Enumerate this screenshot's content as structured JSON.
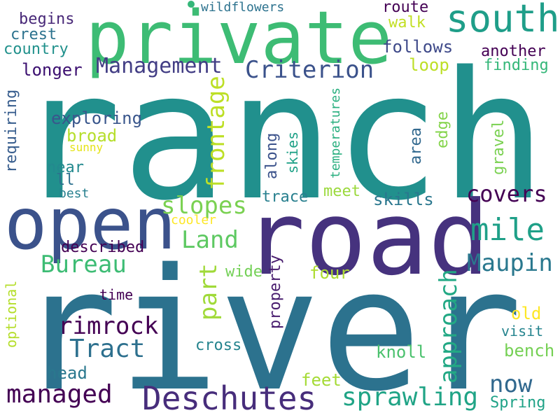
{
  "words": [
    {
      "text": "ranch",
      "color": "#21908d"
    },
    {
      "text": "river",
      "color": "#2c728e"
    },
    {
      "text": "road",
      "color": "#46327e"
    },
    {
      "text": "private",
      "color": "#3dbc74"
    },
    {
      "text": "open",
      "color": "#3b528b"
    },
    {
      "text": "south",
      "color": "#1f9e89"
    },
    {
      "text": "Deschutes",
      "color": "#472d7b"
    },
    {
      "text": "Management",
      "color": "#433e85"
    },
    {
      "text": "Criterion",
      "color": "#3b528b"
    },
    {
      "text": "mile",
      "color": "#1fa088"
    },
    {
      "text": "Bureau",
      "color": "#3dbc74"
    },
    {
      "text": "Maupin",
      "color": "#2a788e"
    },
    {
      "text": "Tract",
      "color": "#2d708e"
    },
    {
      "text": "sprawling",
      "color": "#20a486"
    },
    {
      "text": "rimrock",
      "color": "#440154"
    },
    {
      "text": "managed",
      "color": "#440154"
    },
    {
      "text": "now",
      "color": "#31688e"
    },
    {
      "text": "covers",
      "color": "#440154"
    },
    {
      "text": "Land",
      "color": "#5ec962"
    },
    {
      "text": "slopes",
      "color": "#7ad151"
    },
    {
      "text": "part",
      "color": "#a0da39"
    },
    {
      "text": "frontage",
      "color": "#bddf26"
    },
    {
      "text": "approach",
      "color": "#22a884"
    },
    {
      "text": "route",
      "color": "#440154"
    },
    {
      "text": "follows",
      "color": "#3e4989"
    },
    {
      "text": "another",
      "color": "#440154"
    },
    {
      "text": "finding",
      "color": "#35b779"
    },
    {
      "text": "loop",
      "color": "#bddf26"
    },
    {
      "text": "walk",
      "color": "#c2df23"
    },
    {
      "text": "crest",
      "color": "#2c728e"
    },
    {
      "text": "country",
      "color": "#21918c"
    },
    {
      "text": "begins",
      "color": "#482878"
    },
    {
      "text": "wildflowers",
      "color": "#2c728e"
    },
    {
      "text": "longer",
      "color": "#3b0f70"
    },
    {
      "text": "exploring",
      "color": "#39568c"
    },
    {
      "text": "requiring",
      "color": "#365c8d"
    },
    {
      "text": "broad",
      "color": "#b5de2b"
    },
    {
      "text": "sunny",
      "color": "#e5e419"
    },
    {
      "text": "near",
      "color": "#23898e"
    },
    {
      "text": "ll",
      "color": "#2d708e"
    },
    {
      "text": "best",
      "color": "#277f8e"
    },
    {
      "text": "along",
      "color": "#3b528b"
    },
    {
      "text": "skies",
      "color": "#1fa187"
    },
    {
      "text": "temperatures",
      "color": "#29af7f"
    },
    {
      "text": "area",
      "color": "#31688e"
    },
    {
      "text": "edge",
      "color": "#84d44b"
    },
    {
      "text": "gravel",
      "color": "#7ad151"
    },
    {
      "text": "meet",
      "color": "#9bd93c"
    },
    {
      "text": "trace",
      "color": "#277f8e"
    },
    {
      "text": "skills",
      "color": "#2a778e"
    },
    {
      "text": "cooler",
      "color": "#fde725"
    },
    {
      "text": "described",
      "color": "#440154"
    },
    {
      "text": "wide",
      "color": "#73d056"
    },
    {
      "text": "four",
      "color": "#addc30"
    },
    {
      "text": "property",
      "color": "#481c6e"
    },
    {
      "text": "time",
      "color": "#440154"
    },
    {
      "text": "optional",
      "color": "#b5de2b"
    },
    {
      "text": "cross",
      "color": "#25848e"
    },
    {
      "text": "old",
      "color": "#fde725"
    },
    {
      "text": "visit",
      "color": "#25848e"
    },
    {
      "text": "bench",
      "color": "#75d054"
    },
    {
      "text": "knoll",
      "color": "#4ac16d"
    },
    {
      "text": "head",
      "color": "#2a788e"
    },
    {
      "text": "feet",
      "color": "#a5db36"
    },
    {
      "text": "Spring",
      "color": "#1fa287"
    }
  ],
  "dot_color": "#35b779"
}
